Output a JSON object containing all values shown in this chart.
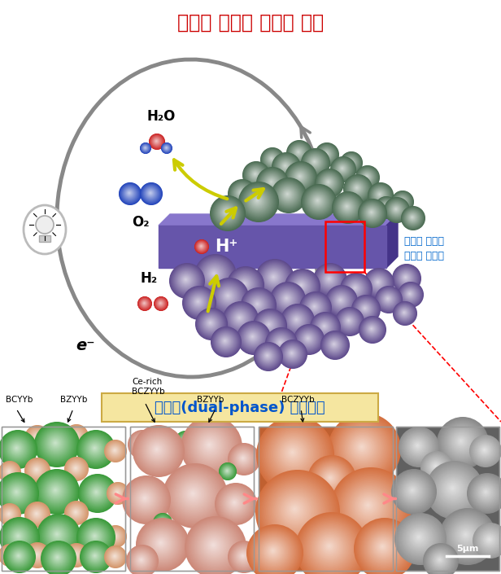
{
  "title": "고성능 프로톤 세라믹 전지",
  "title_color": "#cc0000",
  "title_fontsize": 17,
  "side_label_line1": "프로톤 전도성",
  "side_label_line2": "세라믹 전해질",
  "side_label_color": "#0066cc",
  "dual_phase_label": "이중상(dual-phase) 반응소결",
  "dual_phase_color": "#0055cc",
  "dual_phase_bg": "#f5e6a0",
  "fig_width": 6.16,
  "fig_height": 7.05,
  "dpi": 100,
  "green_color": "#4a6b52",
  "purple_color": "#5e4a8c",
  "slab_color": "#6655aa",
  "slab_top_color": "#8877cc",
  "slab_right_color": "#443388",
  "red_mol_color": "#cc2222",
  "blue_mol_color": "#2244bb",
  "yellow_arrow_color": "#cccc00",
  "gray_arc_color": "#888888",
  "panel1_green": "#3a9a3a",
  "panel1_orange": "#d4956a",
  "panel2_salmon": "#cc8878",
  "panel2_green": "#3a9a3a",
  "panel3_orange": "#d47040",
  "panel3_bg": "#d87040",
  "panel4_bg": "#808080",
  "pink_arrow_color": "#ff8888"
}
